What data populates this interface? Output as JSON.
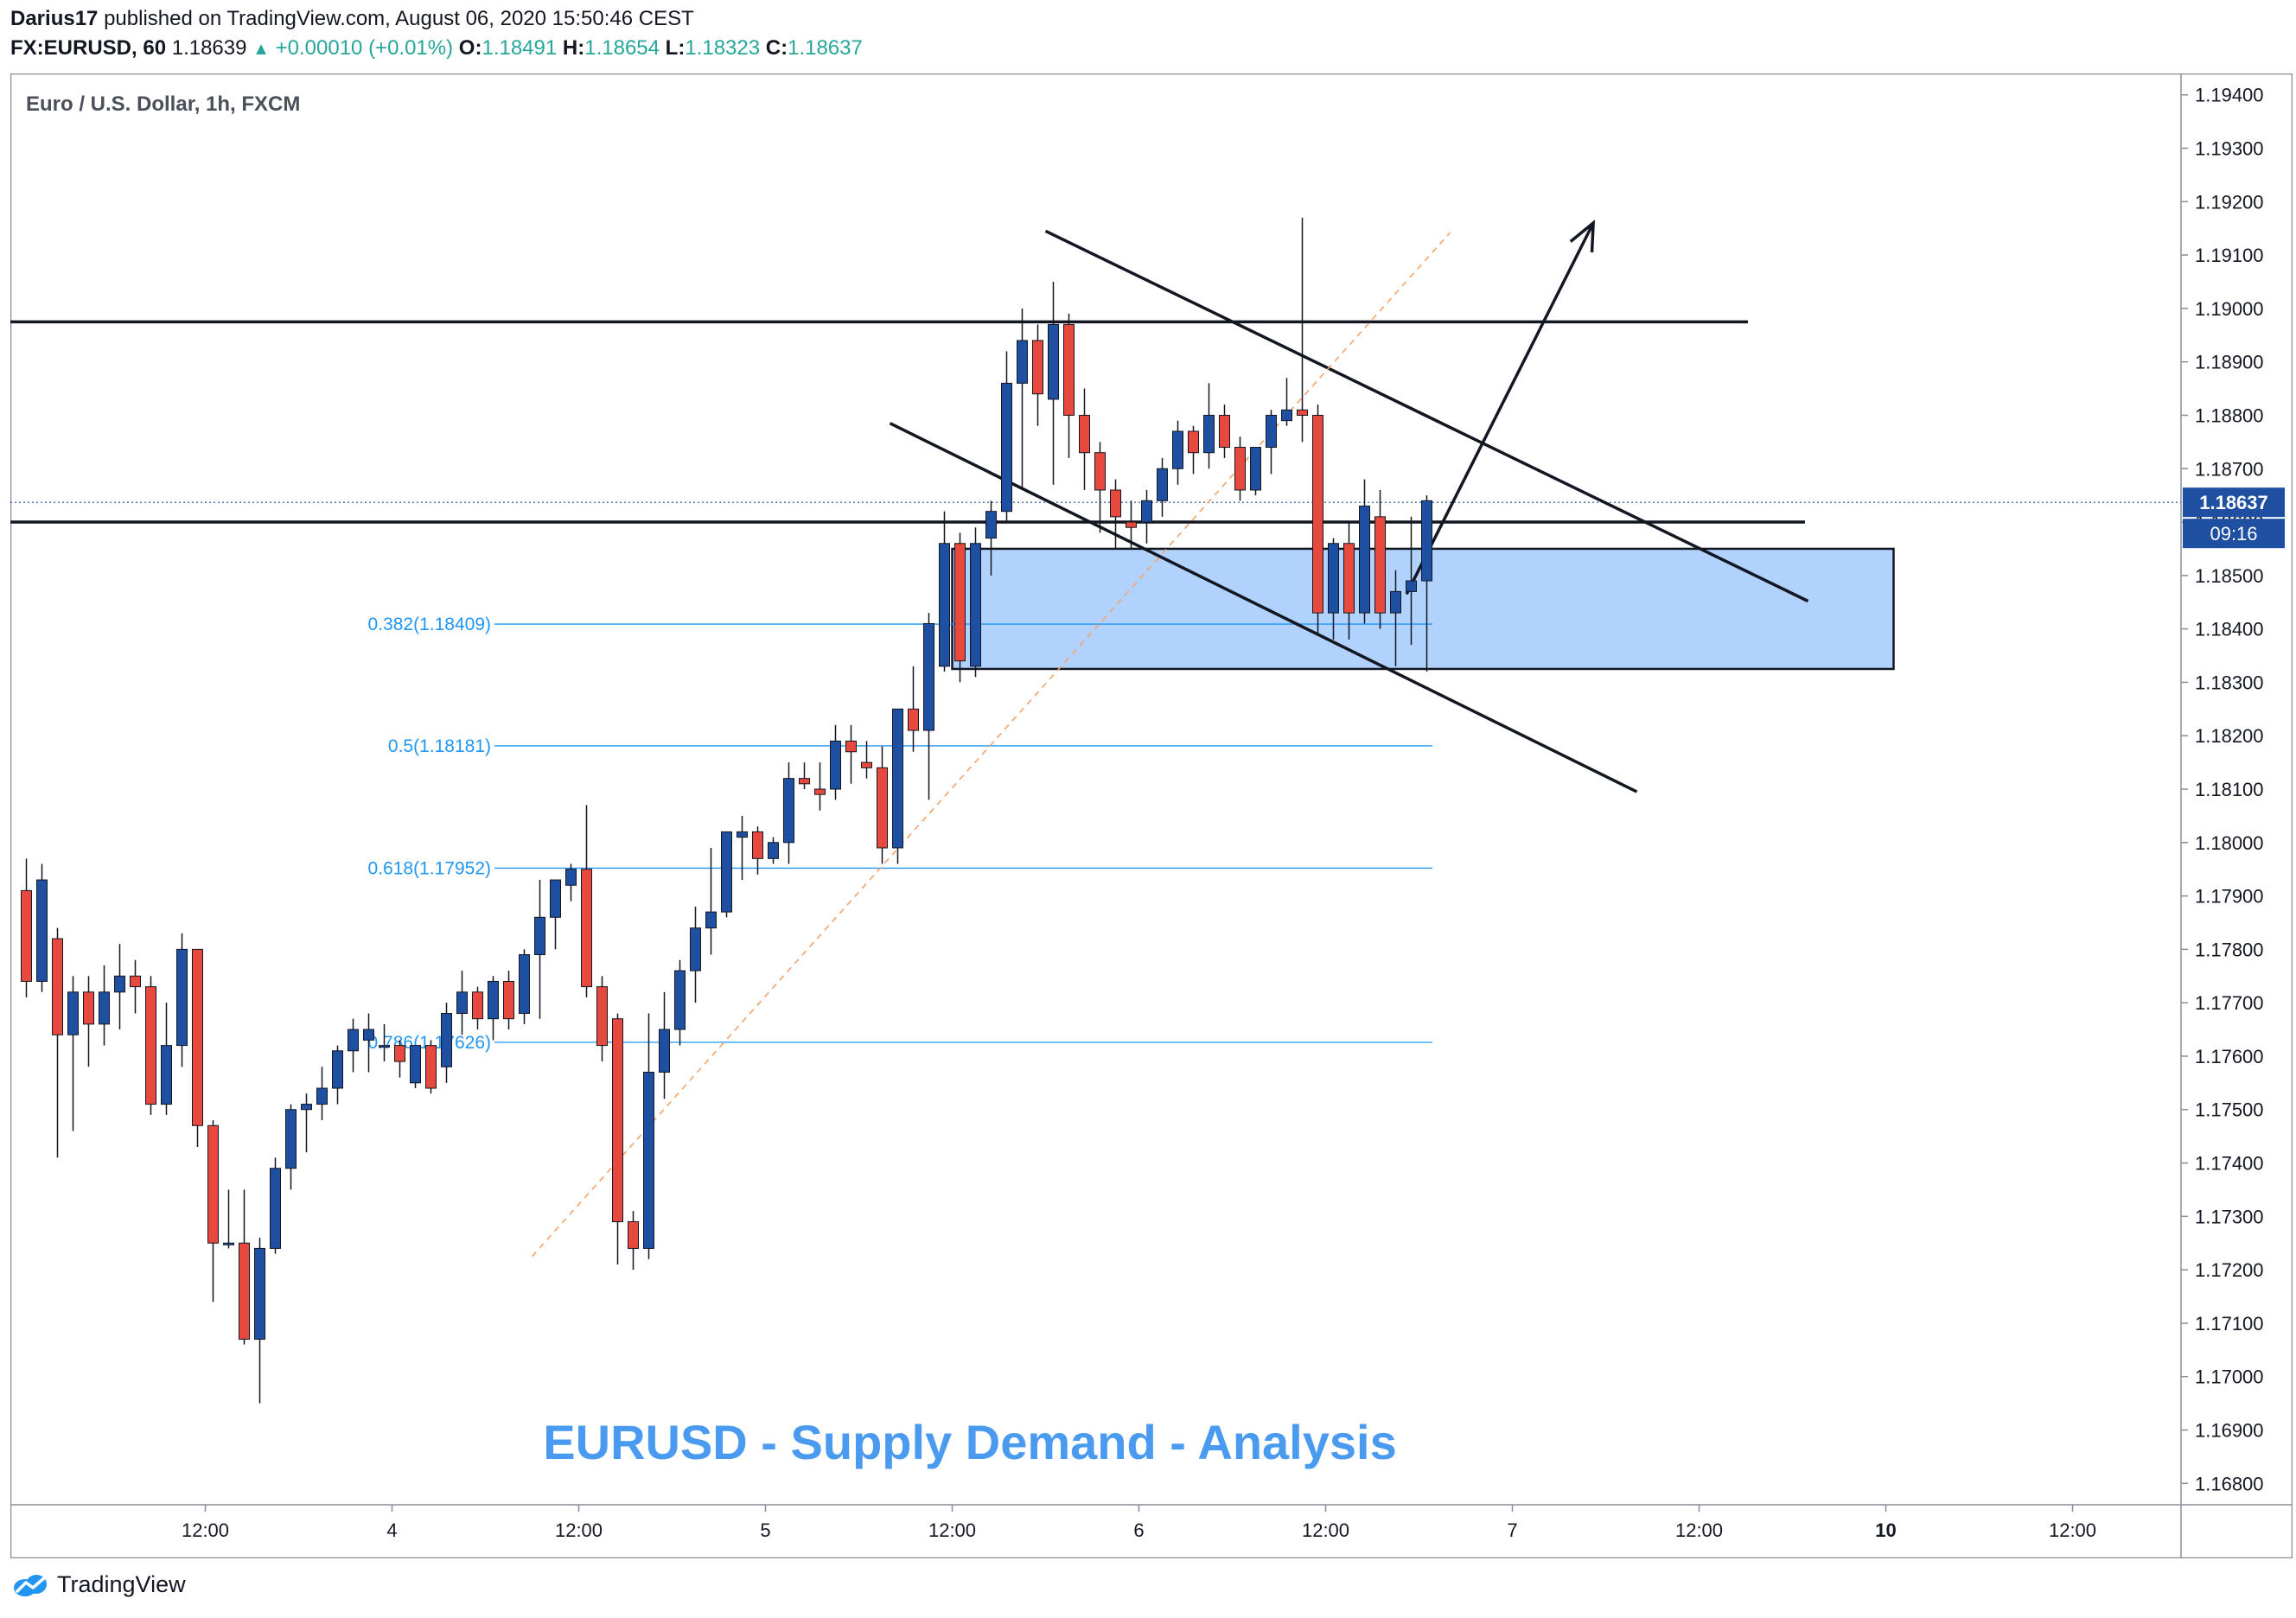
{
  "header": {
    "line1_user": "Darius17",
    "line1_rest": "published on TradingView.com, August 06, 2020 15:50:46 CEST",
    "symbol": "FX:EURUSD, 60",
    "last": "1.18639",
    "change": "+0.00010 (+0.01%)",
    "open_label": "O:",
    "open": "1.18491",
    "high_label": "H:",
    "high": "1.18654",
    "low_label": "L:",
    "low": "1.18323",
    "close_label": "C:",
    "close": "1.18637"
  },
  "legend": {
    "title": "Euro / U.S. Dollar, 1h, FXCM"
  },
  "price_tag": {
    "value": "1.18637",
    "countdown": "09:16"
  },
  "annotation_text": "EURUSD - Supply Demand - Analysis",
  "footer": {
    "brand": "TradingView"
  },
  "colors": {
    "up": "#1f4fa0",
    "down": "#e8493f",
    "fib": "#2196f3",
    "zone_fill": "#a9cdfc",
    "title_text": "#4a9bef",
    "price_tag": "#1f4fa0"
  },
  "chart_data": {
    "type": "candlestick",
    "title": "Euro / U.S. Dollar, 1h, FXCM",
    "y_axis": {
      "min": 1.1676,
      "max": 1.1944,
      "side": "right",
      "ticks": [
        "1.19400",
        "1.19300",
        "1.19200",
        "1.19100",
        "1.19000",
        "1.18900",
        "1.18800",
        "1.18700",
        "1.18600",
        "1.18500",
        "1.18400",
        "1.18300",
        "1.18200",
        "1.18100",
        "1.18000",
        "1.17900",
        "1.17800",
        "1.17700",
        "1.17600",
        "1.17500",
        "1.17400",
        "1.17300",
        "1.17200",
        "1.17100",
        "1.17000",
        "1.16900",
        "1.16800"
      ]
    },
    "x_axis": {
      "labels": [
        {
          "text": "12:00",
          "bar": 11.5
        },
        {
          "text": "4",
          "bar": 23.5
        },
        {
          "text": "12:00",
          "bar": 35.5
        },
        {
          "text": "5",
          "bar": 47.5
        },
        {
          "text": "12:00",
          "bar": 59.5
        },
        {
          "text": "6",
          "bar": 71.5
        },
        {
          "text": "12:00",
          "bar": 83.5
        },
        {
          "text": "7",
          "bar": 95.5
        },
        {
          "text": "12:00",
          "bar": 107.5
        },
        {
          "text": "10",
          "bar": 119.5,
          "bold": true
        },
        {
          "text": "12:00",
          "bar": 131.5
        }
      ]
    },
    "candles": [
      [
        1.1791,
        1.1797,
        1.1771,
        1.1774
      ],
      [
        1.1774,
        1.1796,
        1.1772,
        1.1793
      ],
      [
        1.1782,
        1.1784,
        1.1741,
        1.1764
      ],
      [
        1.1764,
        1.1775,
        1.1746,
        1.1772
      ],
      [
        1.1772,
        1.1775,
        1.1758,
        1.1766
      ],
      [
        1.1766,
        1.1777,
        1.1762,
        1.1772
      ],
      [
        1.1772,
        1.1781,
        1.1765,
        1.1775
      ],
      [
        1.1775,
        1.1778,
        1.1768,
        1.1773
      ],
      [
        1.1773,
        1.1775,
        1.1749,
        1.1751
      ],
      [
        1.1751,
        1.177,
        1.1749,
        1.1762
      ],
      [
        1.1762,
        1.1783,
        1.1758,
        1.178
      ],
      [
        1.178,
        1.178,
        1.1743,
        1.1747
      ],
      [
        1.1747,
        1.1748,
        1.1714,
        1.1725
      ],
      [
        1.1725,
        1.1735,
        1.1724,
        1.1725
      ],
      [
        1.1725,
        1.1735,
        1.1706,
        1.1707
      ],
      [
        1.1707,
        1.1726,
        1.1695,
        1.1724
      ],
      [
        1.1724,
        1.1741,
        1.1723,
        1.1739
      ],
      [
        1.1739,
        1.1751,
        1.1735,
        1.175
      ],
      [
        1.175,
        1.1753,
        1.1742,
        1.1751
      ],
      [
        1.1751,
        1.1758,
        1.1748,
        1.1754
      ],
      [
        1.1754,
        1.1762,
        1.1751,
        1.1761
      ],
      [
        1.1761,
        1.1767,
        1.1757,
        1.1765
      ],
      [
        1.1763,
        1.1768,
        1.1757,
        1.1765
      ],
      [
        1.1762,
        1.1766,
        1.1759,
        1.1762
      ],
      [
        1.1762,
        1.1763,
        1.1756,
        1.1759
      ],
      [
        1.1755,
        1.1762,
        1.1754,
        1.1762
      ],
      [
        1.1762,
        1.1763,
        1.1753,
        1.1754
      ],
      [
        1.1758,
        1.177,
        1.1755,
        1.1768
      ],
      [
        1.1768,
        1.1776,
        1.1764,
        1.1772
      ],
      [
        1.1772,
        1.1773,
        1.1765,
        1.1767
      ],
      [
        1.1767,
        1.1775,
        1.1763,
        1.1774
      ],
      [
        1.1774,
        1.1776,
        1.1765,
        1.1767
      ],
      [
        1.1768,
        1.178,
        1.1766,
        1.1779
      ],
      [
        1.1779,
        1.1793,
        1.1767,
        1.1786
      ],
      [
        1.1786,
        1.1791,
        1.178,
        1.1793
      ],
      [
        1.1792,
        1.1796,
        1.1789,
        1.1795
      ],
      [
        1.1795,
        1.1807,
        1.1771,
        1.1773
      ],
      [
        1.1773,
        1.1775,
        1.1759,
        1.1762
      ],
      [
        1.1767,
        1.1768,
        1.1721,
        1.1729
      ],
      [
        1.1729,
        1.1731,
        1.172,
        1.1724
      ],
      [
        1.1724,
        1.1768,
        1.1722,
        1.1757
      ],
      [
        1.1757,
        1.1772,
        1.1752,
        1.1765
      ],
      [
        1.1765,
        1.1778,
        1.1762,
        1.1776
      ],
      [
        1.1776,
        1.1788,
        1.177,
        1.1784
      ],
      [
        1.1784,
        1.1799,
        1.1779,
        1.1787
      ],
      [
        1.1787,
        1.1802,
        1.1786,
        1.1802
      ],
      [
        1.1801,
        1.1805,
        1.1793,
        1.1802
      ],
      [
        1.1802,
        1.1803,
        1.1794,
        1.1797
      ],
      [
        1.1797,
        1.1801,
        1.1796,
        1.18
      ],
      [
        1.18,
        1.1815,
        1.1796,
        1.1812
      ],
      [
        1.1812,
        1.1815,
        1.181,
        1.1811
      ],
      [
        1.181,
        1.1815,
        1.1806,
        1.1809
      ],
      [
        1.181,
        1.1822,
        1.1808,
        1.1819
      ],
      [
        1.1819,
        1.1822,
        1.1811,
        1.1817
      ],
      [
        1.1815,
        1.1819,
        1.1812,
        1.1814
      ],
      [
        1.1814,
        1.1818,
        1.1796,
        1.1799
      ],
      [
        1.1799,
        1.1825,
        1.1796,
        1.1825
      ],
      [
        1.1825,
        1.1833,
        1.1817,
        1.1821
      ],
      [
        1.1821,
        1.1843,
        1.1808,
        1.1841
      ],
      [
        1.1833,
        1.1862,
        1.1832,
        1.1856
      ],
      [
        1.1856,
        1.1858,
        1.183,
        1.1834
      ],
      [
        1.1833,
        1.1859,
        1.1831,
        1.1856
      ],
      [
        1.1857,
        1.1864,
        1.185,
        1.1862
      ],
      [
        1.1862,
        1.1892,
        1.186,
        1.1886
      ],
      [
        1.1886,
        1.19,
        1.1866,
        1.1894
      ],
      [
        1.1894,
        1.1897,
        1.1878,
        1.1884
      ],
      [
        1.1883,
        1.1905,
        1.1867,
        1.1897
      ],
      [
        1.1897,
        1.1899,
        1.1872,
        1.188
      ],
      [
        1.188,
        1.1885,
        1.1866,
        1.1873
      ],
      [
        1.1873,
        1.1875,
        1.1858,
        1.1866
      ],
      [
        1.1866,
        1.1868,
        1.1855,
        1.1861
      ],
      [
        1.186,
        1.1864,
        1.1855,
        1.1859
      ],
      [
        1.186,
        1.1866,
        1.1856,
        1.1864
      ],
      [
        1.1864,
        1.1872,
        1.1861,
        1.187
      ],
      [
        1.187,
        1.1879,
        1.1867,
        1.1877
      ],
      [
        1.1877,
        1.1878,
        1.1869,
        1.1873
      ],
      [
        1.1873,
        1.1886,
        1.187,
        1.188
      ],
      [
        1.188,
        1.1882,
        1.1872,
        1.1874
      ],
      [
        1.1874,
        1.1876,
        1.1864,
        1.1866
      ],
      [
        1.1866,
        1.1874,
        1.1865,
        1.1874
      ],
      [
        1.1874,
        1.1881,
        1.1869,
        1.188
      ],
      [
        1.1879,
        1.1887,
        1.1878,
        1.1881
      ],
      [
        1.1881,
        1.1917,
        1.1875,
        1.188
      ],
      [
        1.188,
        1.1882,
        1.1839,
        1.1843
      ],
      [
        1.1843,
        1.1857,
        1.1838,
        1.1856
      ],
      [
        1.1856,
        1.186,
        1.1838,
        1.1843
      ],
      [
        1.1843,
        1.1868,
        1.1841,
        1.1863
      ],
      [
        1.1861,
        1.1866,
        1.184,
        1.1843
      ],
      [
        1.1843,
        1.1851,
        1.1833,
        1.1847
      ],
      [
        1.1847,
        1.1861,
        1.1837,
        1.1849
      ],
      [
        1.1849,
        1.1865,
        1.1832,
        1.1864
      ]
    ],
    "horizontal_levels": [
      1.18975,
      1.186
    ],
    "current_price": 1.18637,
    "fib_levels": [
      {
        "label": "0.382(1.18409)",
        "value": 1.18409
      },
      {
        "label": "0.5(1.18181)",
        "value": 1.18181
      },
      {
        "label": "0.618(1.17952)",
        "value": 1.17952
      },
      {
        "label": "0.786(1.17626)",
        "value": 1.17626
      }
    ],
    "demand_zone": {
      "from_bar": 59.5,
      "to_bar": 120.0,
      "top": 1.1855,
      "bottom": 1.18325
    },
    "trend_lines": [
      {
        "from": [
          65.5,
          1.19145
        ],
        "to": [
          114.5,
          1.18452
        ],
        "style": "solid"
      },
      {
        "from": [
          55.5,
          1.18785
        ],
        "to": [
          103.5,
          1.18095
        ],
        "style": "solid"
      },
      {
        "from": [
          32.5,
          1.17225
        ],
        "to": [
          91.5,
          1.19142
        ],
        "style": "dashed"
      }
    ],
    "projection_arrow": {
      "from": [
        88.7,
        1.18465
      ],
      "to": [
        100.7,
        1.1916
      ]
    }
  }
}
